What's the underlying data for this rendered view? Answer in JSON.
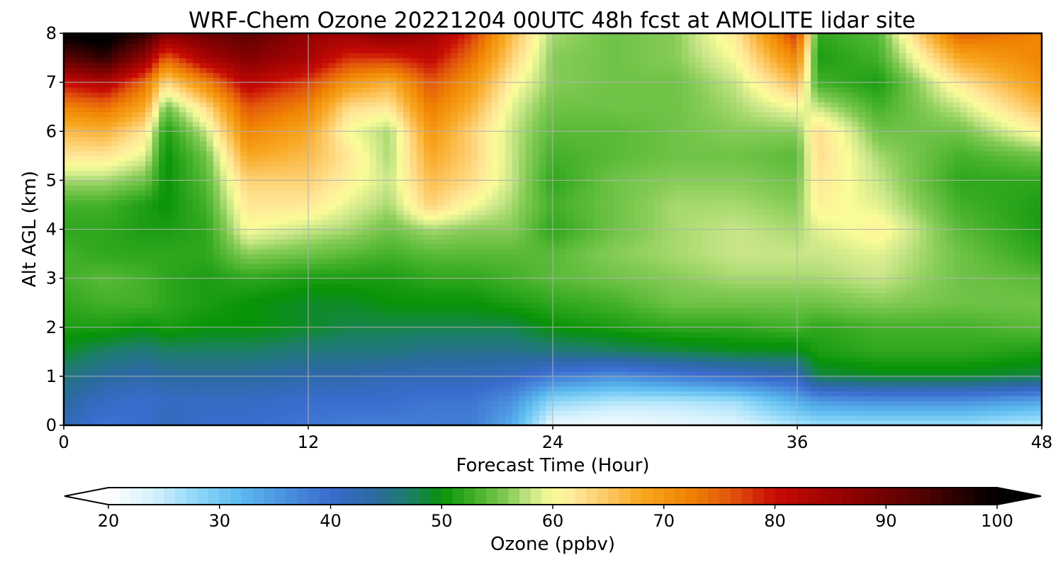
{
  "chart_data": {
    "type": "heatmap",
    "title": "WRF-Chem Ozone  20221204 00UTC 48h fcst at AMOLITE lidar site",
    "xlabel": "Forecast Time (Hour)",
    "ylabel": "Alt AGL (km)",
    "xlim": [
      0,
      48
    ],
    "ylim": [
      0,
      8
    ],
    "xticks": [
      0,
      12,
      24,
      36,
      48
    ],
    "yticks": [
      0,
      1,
      2,
      3,
      4,
      5,
      6,
      7,
      8
    ],
    "grid": true,
    "x_hours": [
      0,
      2,
      4,
      5,
      7,
      9,
      12,
      14,
      16,
      18,
      20,
      22,
      24,
      27,
      30,
      33,
      36,
      37,
      40,
      44,
      48
    ],
    "z_km": [
      0,
      0.5,
      1,
      1.5,
      2,
      2.5,
      3,
      3.5,
      4,
      4.5,
      5,
      5.5,
      6,
      6.5,
      7,
      7.5,
      8
    ],
    "ozone_ppbv": [
      [
        42,
        39,
        40,
        42,
        40,
        40,
        39,
        38,
        38,
        38,
        38,
        33,
        22,
        21,
        22,
        23,
        26,
        27,
        27,
        27,
        25
      ],
      [
        44,
        41,
        40,
        41,
        41,
        41,
        40,
        40,
        40,
        39,
        39,
        36,
        28,
        26,
        26,
        27,
        33,
        35,
        36,
        36,
        34
      ],
      [
        46,
        44,
        43,
        44,
        44,
        44,
        43,
        43,
        42,
        42,
        42,
        41,
        38,
        36,
        38,
        40,
        42,
        48,
        49,
        49,
        48
      ],
      [
        49,
        47,
        46,
        47,
        47,
        47,
        46,
        46,
        46,
        45,
        45,
        45,
        46,
        47,
        48,
        49,
        49,
        51,
        52,
        52,
        51
      ],
      [
        51,
        51,
        50,
        51,
        50,
        50,
        49,
        48,
        48,
        48,
        48,
        48,
        50,
        51,
        52,
        52,
        53,
        52,
        53,
        53,
        54
      ],
      [
        52,
        53,
        53,
        52,
        51,
        50,
        49,
        49,
        50,
        50,
        50,
        51,
        52,
        53,
        55,
        55,
        55,
        55,
        56,
        55,
        55
      ],
      [
        53,
        54,
        53,
        52,
        51,
        52,
        51,
        51,
        51,
        52,
        52,
        53,
        54,
        55,
        56,
        57,
        57,
        57,
        58,
        55,
        54
      ],
      [
        53,
        52,
        52,
        52,
        52,
        56,
        55,
        54,
        53,
        54,
        54,
        54,
        54,
        56,
        57,
        58,
        58,
        58,
        59,
        55,
        52
      ],
      [
        52,
        52,
        51,
        51,
        52,
        60,
        58,
        57,
        55,
        57,
        56,
        56,
        52,
        55,
        57,
        58,
        57,
        59,
        61,
        54,
        51
      ],
      [
        53,
        53,
        51,
        50,
        53,
        62,
        62,
        59,
        57,
        64,
        60,
        57,
        53,
        55,
        57,
        57,
        56,
        61,
        59,
        53,
        51
      ],
      [
        57,
        57,
        55,
        50,
        54,
        64,
        64,
        61,
        58,
        66,
        63,
        58,
        52,
        55,
        56,
        56,
        55,
        62,
        58,
        52,
        52
      ],
      [
        62,
        62,
        59,
        50,
        55,
        68,
        66,
        62,
        57,
        68,
        64,
        58,
        53,
        54,
        55,
        55,
        54,
        63,
        57,
        53,
        55
      ],
      [
        66,
        67,
        62,
        51,
        58,
        72,
        68,
        60,
        57,
        70,
        64,
        58,
        54,
        54,
        55,
        56,
        56,
        63,
        55,
        55,
        61
      ],
      [
        72,
        74,
        68,
        55,
        63,
        76,
        72,
        63,
        62,
        73,
        67,
        59,
        55,
        55,
        55,
        57,
        60,
        58,
        53,
        58,
        66
      ],
      [
        80,
        83,
        74,
        63,
        72,
        82,
        77,
        70,
        67,
        76,
        70,
        61,
        56,
        55,
        55,
        58,
        66,
        53,
        51,
        62,
        70
      ],
      [
        92,
        96,
        86,
        75,
        84,
        88,
        84,
        78,
        78,
        81,
        74,
        64,
        56,
        55,
        56,
        60,
        72,
        51,
        53,
        68,
        72
      ],
      [
        101,
        102,
        96,
        88,
        90,
        92,
        86,
        85,
        88,
        85,
        78,
        66,
        57,
        55,
        56,
        62,
        78,
        52,
        54,
        75,
        72
      ]
    ],
    "colorbar": {
      "label": "Ozone  (ppbv)",
      "min": 20,
      "max": 100,
      "ticks": [
        20,
        30,
        40,
        50,
        60,
        70,
        80,
        90,
        100
      ],
      "extend": "both",
      "stops": [
        [
          20,
          "#ffffff"
        ],
        [
          24,
          "#d6f1fd"
        ],
        [
          28,
          "#8cd7f8"
        ],
        [
          32,
          "#5bb8ef"
        ],
        [
          36,
          "#4a90de"
        ],
        [
          40,
          "#3a6ccf"
        ],
        [
          44,
          "#2b6aa0"
        ],
        [
          47,
          "#1d7d6c"
        ],
        [
          50,
          "#079307"
        ],
        [
          53,
          "#43b02a"
        ],
        [
          56,
          "#86cc56"
        ],
        [
          58,
          "#c9e688"
        ],
        [
          60,
          "#fafc98"
        ],
        [
          62,
          "#ffe89a"
        ],
        [
          65,
          "#fdc660"
        ],
        [
          68,
          "#f8a722"
        ],
        [
          72,
          "#f18603"
        ],
        [
          76,
          "#e2560c"
        ],
        [
          80,
          "#c70b05"
        ],
        [
          86,
          "#960202"
        ],
        [
          93,
          "#540202"
        ],
        [
          100,
          "#000000"
        ]
      ]
    }
  }
}
